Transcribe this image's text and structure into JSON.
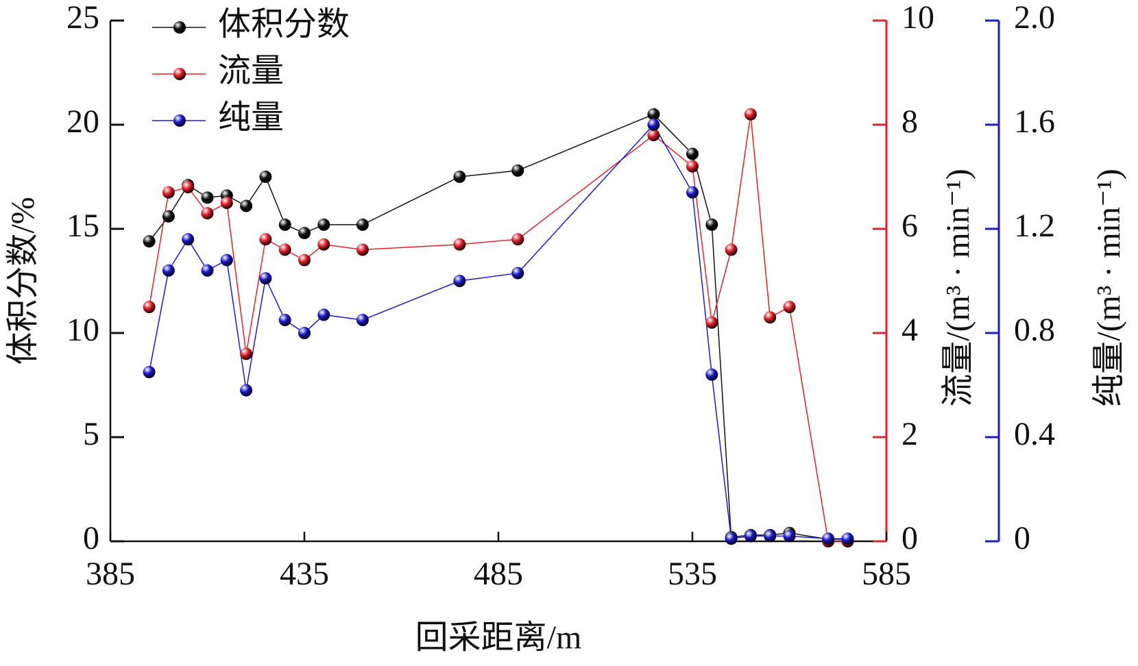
{
  "chart_data": {
    "type": "line",
    "xlabel": "回采距离/m",
    "ylabel": "体积分数/%",
    "y2label": "流量/(m³ · min⁻¹)",
    "y3label": "纯量/(m³ · min⁻¹)",
    "x": [
      395,
      400,
      405,
      410,
      415,
      420,
      425,
      430,
      435,
      440,
      450,
      475,
      490,
      525,
      535,
      540,
      545,
      550,
      555,
      560,
      570,
      575
    ],
    "series": [
      {
        "name": "体积分数",
        "color": "#111111",
        "axis": "y",
        "values": [
          14.4,
          15.6,
          17.1,
          16.5,
          16.6,
          16.1,
          17.5,
          15.2,
          14.8,
          15.2,
          15.2,
          17.5,
          17.8,
          20.5,
          18.6,
          15.2,
          0.2,
          0.3,
          0.3,
          0.4,
          0.1,
          0.1
        ]
      },
      {
        "name": "流量",
        "color": "#e0202a",
        "axis": "y2",
        "values": [
          4.5,
          6.7,
          6.8,
          6.3,
          6.5,
          3.6,
          5.8,
          5.6,
          5.4,
          5.7,
          5.6,
          5.7,
          5.8,
          7.8,
          7.2,
          4.2,
          5.6,
          8.2,
          4.3,
          4.5,
          0,
          0
        ]
      },
      {
        "name": "纯量",
        "color": "#1a1acc",
        "axis": "y3",
        "values": [
          0.65,
          1.04,
          1.16,
          1.04,
          1.08,
          0.58,
          1.01,
          0.85,
          0.8,
          0.87,
          0.85,
          1.0,
          1.03,
          1.6,
          1.34,
          0.64,
          0.01,
          0.02,
          0.02,
          0.02,
          0.01,
          0.01
        ]
      }
    ],
    "xlim": [
      385,
      585
    ],
    "xticks": [
      385,
      435,
      485,
      535,
      585
    ],
    "ylim": [
      0,
      25
    ],
    "yticks": [
      0,
      5,
      10,
      15,
      20,
      25
    ],
    "y2lim": [
      0,
      10
    ],
    "y2ticks": [
      0,
      2,
      4,
      6,
      8,
      10
    ],
    "y3lim": [
      0,
      2
    ],
    "y3ticks": [
      0,
      0.4,
      0.8,
      1.2,
      1.6,
      {
        "value": 2,
        "label": "2.0"
      }
    ],
    "legend": "upper left"
  }
}
